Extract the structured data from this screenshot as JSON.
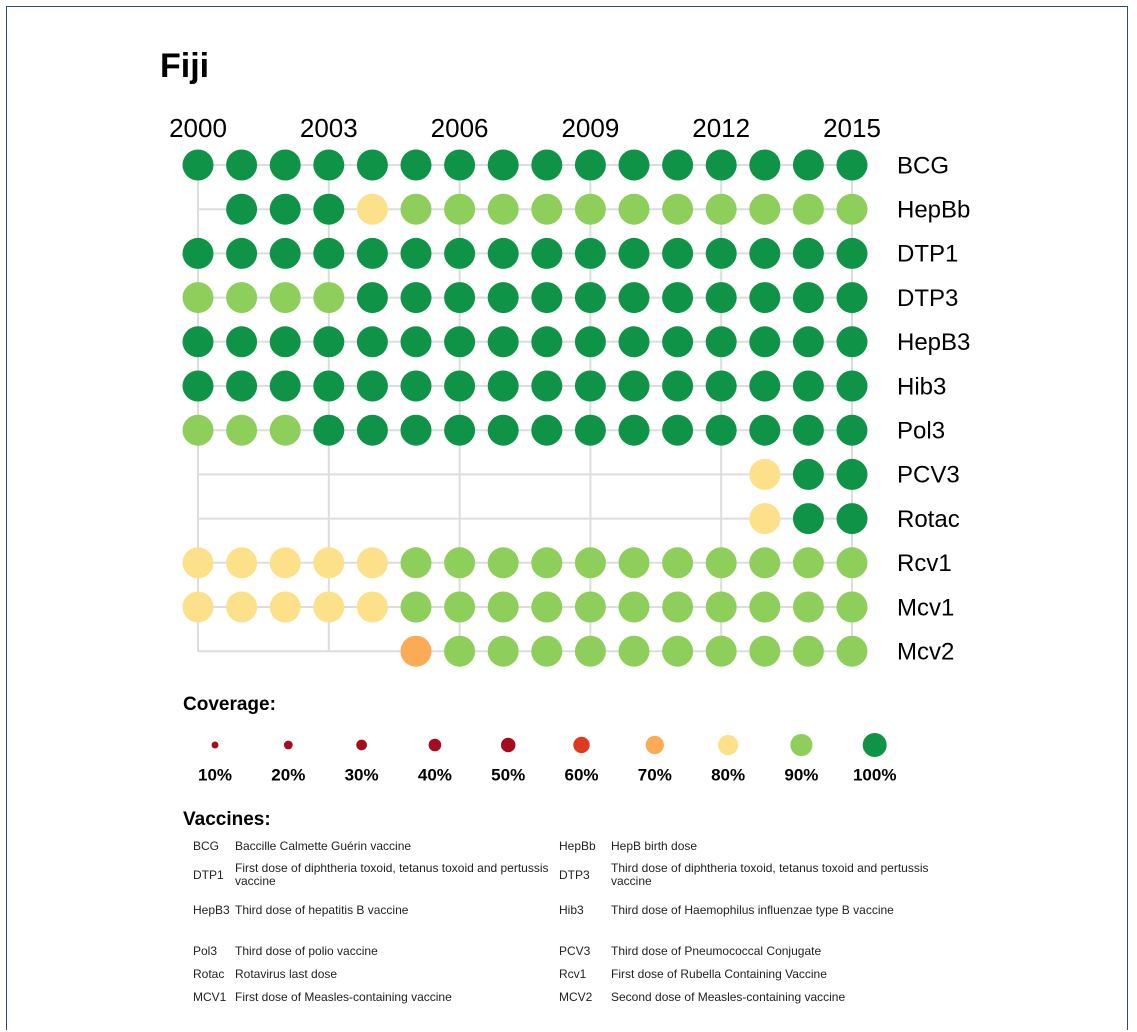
{
  "chart_data": {
    "type": "dot-matrix",
    "title": "Fiji",
    "x": [
      2000,
      2001,
      2002,
      2003,
      2004,
      2005,
      2006,
      2007,
      2008,
      2009,
      2010,
      2011,
      2012,
      2013,
      2014,
      2015
    ],
    "xticks": [
      2000,
      2003,
      2006,
      2009,
      2012,
      2015
    ],
    "series": [
      {
        "name": "BCG",
        "values": [
          100,
          100,
          100,
          100,
          100,
          100,
          100,
          100,
          100,
          100,
          100,
          100,
          100,
          100,
          100,
          100
        ]
      },
      {
        "name": "HepBb",
        "values": [
          null,
          100,
          100,
          100,
          80,
          90,
          90,
          90,
          90,
          90,
          90,
          90,
          90,
          90,
          90,
          90
        ]
      },
      {
        "name": "DTP1",
        "values": [
          100,
          100,
          100,
          100,
          100,
          100,
          100,
          100,
          100,
          100,
          100,
          100,
          100,
          100,
          100,
          100
        ]
      },
      {
        "name": "DTP3",
        "values": [
          90,
          90,
          90,
          90,
          100,
          100,
          100,
          100,
          100,
          100,
          100,
          100,
          100,
          100,
          100,
          100
        ]
      },
      {
        "name": "HepB3",
        "values": [
          100,
          100,
          100,
          100,
          100,
          100,
          100,
          100,
          100,
          100,
          100,
          100,
          100,
          100,
          100,
          100
        ]
      },
      {
        "name": "Hib3",
        "values": [
          100,
          100,
          100,
          100,
          100,
          100,
          100,
          100,
          100,
          100,
          100,
          100,
          100,
          100,
          100,
          100
        ]
      },
      {
        "name": "Pol3",
        "values": [
          90,
          90,
          90,
          100,
          100,
          100,
          100,
          100,
          100,
          100,
          100,
          100,
          100,
          100,
          100,
          100
        ]
      },
      {
        "name": "PCV3",
        "values": [
          null,
          null,
          null,
          null,
          null,
          null,
          null,
          null,
          null,
          null,
          null,
          null,
          null,
          80,
          100,
          100
        ]
      },
      {
        "name": "Rotac",
        "values": [
          null,
          null,
          null,
          null,
          null,
          null,
          null,
          null,
          null,
          null,
          null,
          null,
          null,
          80,
          100,
          100
        ]
      },
      {
        "name": "Rcv1",
        "values": [
          80,
          80,
          80,
          80,
          80,
          90,
          90,
          90,
          90,
          90,
          90,
          90,
          90,
          90,
          90,
          90
        ]
      },
      {
        "name": "Mcv1",
        "values": [
          80,
          80,
          80,
          80,
          80,
          90,
          90,
          90,
          90,
          90,
          90,
          90,
          90,
          90,
          90,
          90
        ]
      },
      {
        "name": "Mcv2",
        "values": [
          null,
          null,
          null,
          null,
          null,
          70,
          90,
          90,
          90,
          90,
          90,
          90,
          90,
          90,
          90,
          90
        ]
      }
    ],
    "grid": true,
    "legend": {
      "title": "Coverage:",
      "levels": [
        10,
        20,
        30,
        40,
        50,
        60,
        70,
        80,
        90,
        100
      ],
      "value_labels": [
        "10%",
        "20%",
        "30%",
        "40%",
        "50%",
        "60%",
        "70%",
        "80%",
        "90%",
        "100%"
      ],
      "colors": [
        "#a50d1e",
        "#a50d1e",
        "#a50d1e",
        "#a50d1e",
        "#a50d1e",
        "#e03a1e",
        "#fbaa55",
        "#fde08a",
        "#8dcf5a",
        "#0f9447"
      ]
    },
    "glossary": {
      "title": "Vaccines:",
      "items": [
        {
          "code": "BCG",
          "description": "Baccille Calmette Guérin vaccine"
        },
        {
          "code": "HepBb",
          "description": "HepB birth dose"
        },
        {
          "code": "DTP1",
          "description": "First dose of diphtheria toxoid, tetanus toxoid and pertussis vaccine"
        },
        {
          "code": "DTP3",
          "description": "Third dose of diphtheria toxoid, tetanus toxoid and pertussis vaccine"
        },
        {
          "code": "HepB3",
          "description": "Third dose of hepatitis B vaccine"
        },
        {
          "code": "Hib3",
          "description": "Third dose of Haemophilus influenzae type B vaccine"
        },
        {
          "code": "Pol3",
          "description": "Third dose of polio vaccine"
        },
        {
          "code": "PCV3",
          "description": "Third dose of Pneumococcal Conjugate"
        },
        {
          "code": "Rotac",
          "description": "Rotavirus last dose"
        },
        {
          "code": "Rcv1",
          "description": "First dose of Rubella Containing Vaccine"
        },
        {
          "code": "MCV1",
          "description": "First dose of Measles-containing vaccine"
        },
        {
          "code": "MCV2",
          "description": "Second dose of Measles-containing vaccine"
        }
      ]
    }
  }
}
